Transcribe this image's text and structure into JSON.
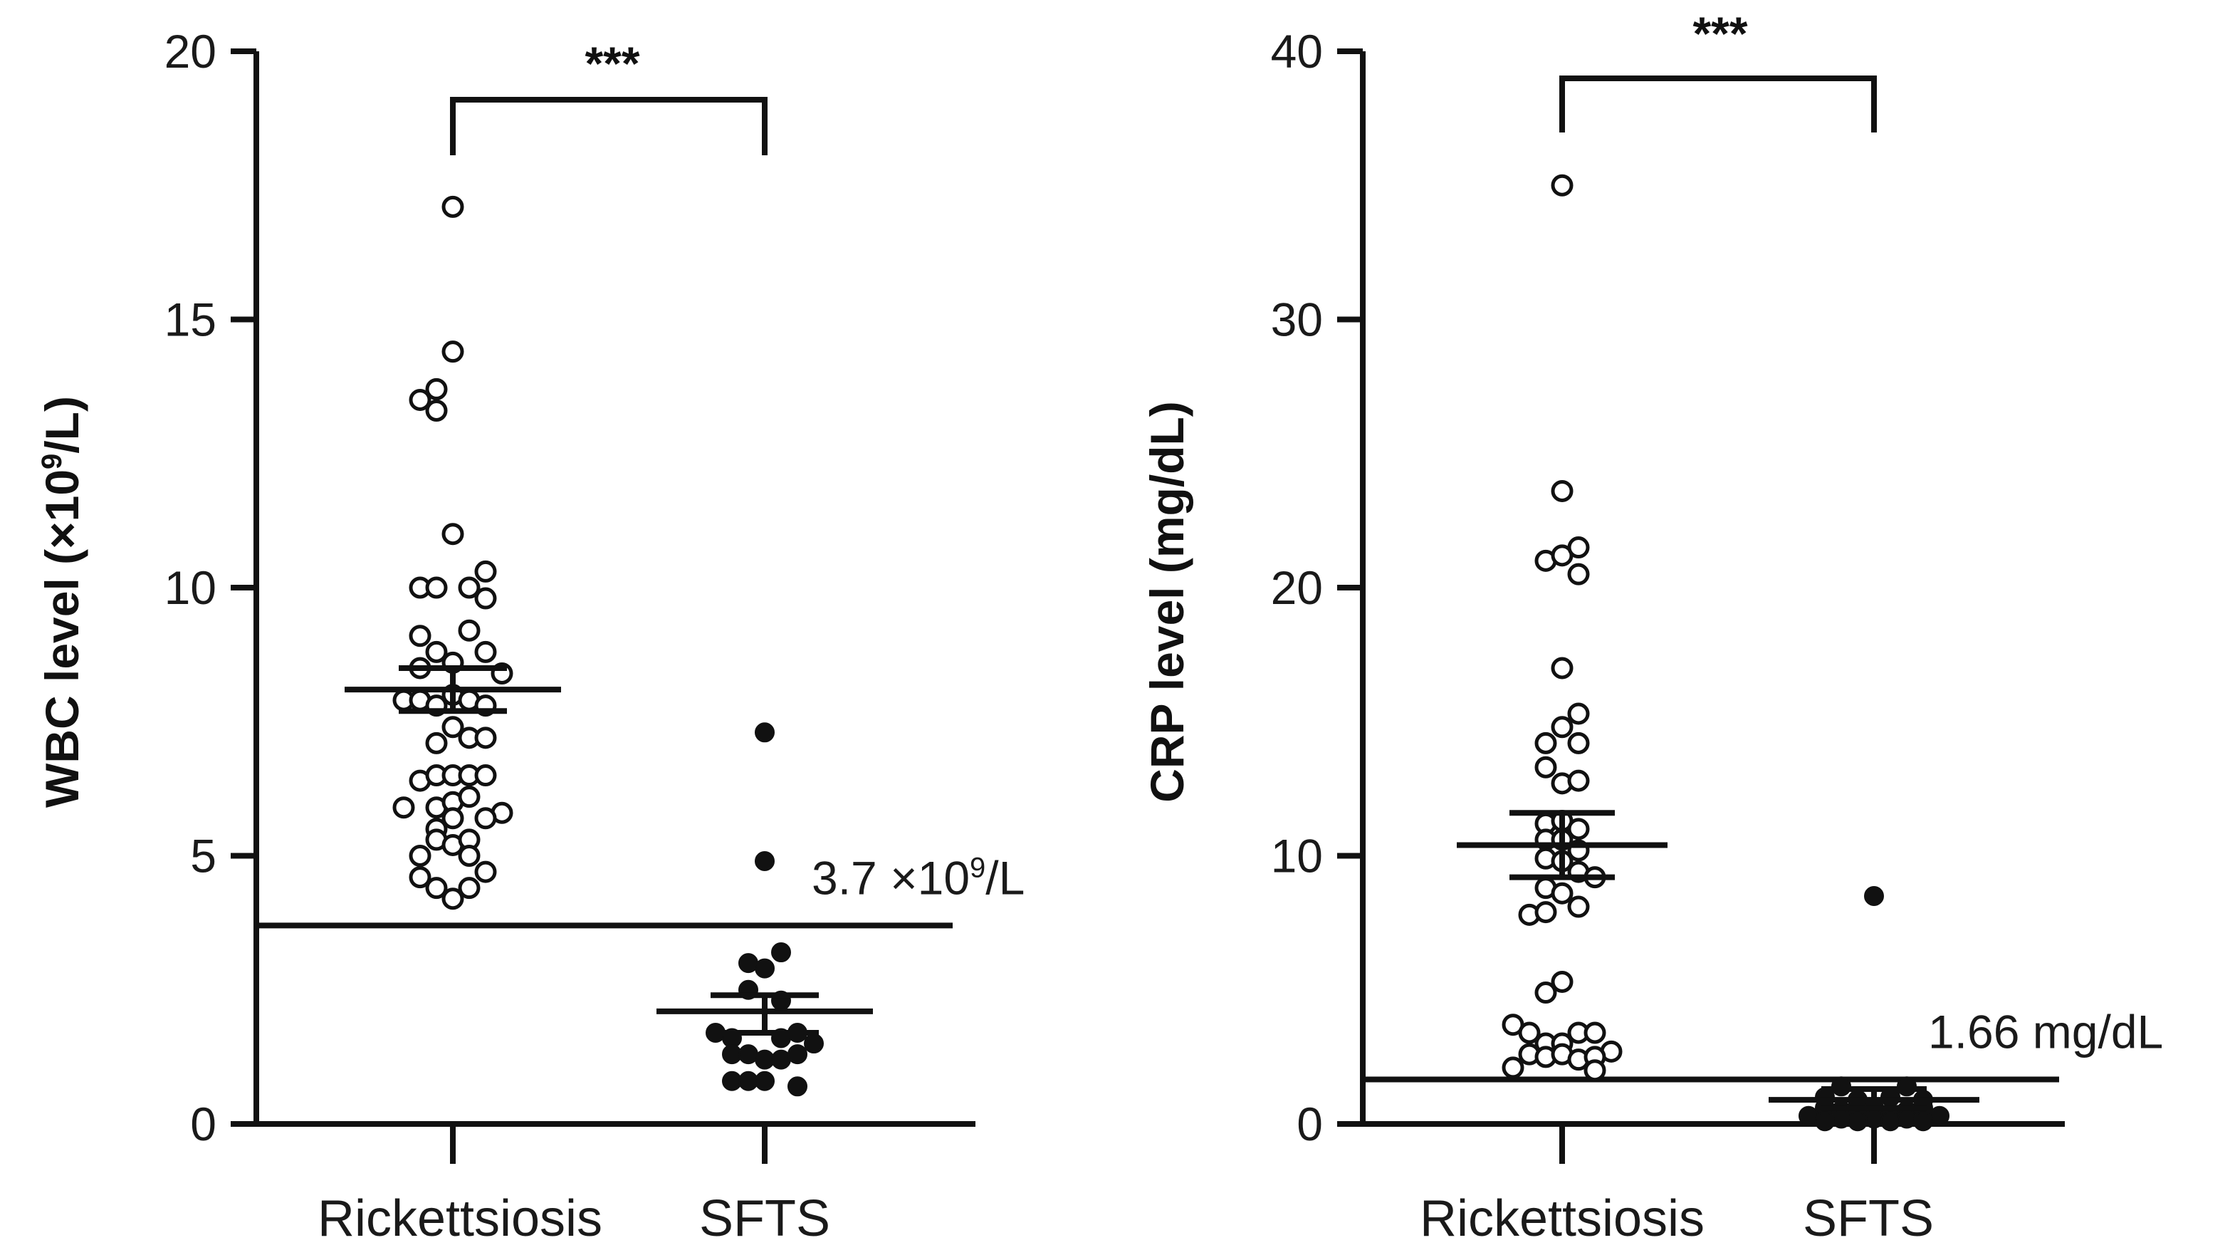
{
  "chart_data": [
    {
      "type": "scatter",
      "panel": "left",
      "ylabel_prefix": "WBC level (×10",
      "ylabel_sup": "9",
      "ylabel_suffix": "/L)",
      "ylim": [
        0,
        20
      ],
      "yticks": [
        "0",
        "5",
        "10",
        "15",
        "20"
      ],
      "categories": [
        "Rickettsiosis",
        "SFTS"
      ],
      "significance": "***",
      "reference_line": {
        "value": 3.7,
        "label_prefix": "3.7 ×10",
        "label_sup": "9",
        "label_suffix": "/L"
      },
      "series": [
        {
          "name": "Rickettsiosis",
          "marker": "open-circle",
          "mean": 8.1,
          "sem_low": 7.7,
          "sem_high": 8.5,
          "points": [
            {
              "o": 0,
              "v": 17.1
            },
            {
              "o": 0,
              "v": 14.4
            },
            {
              "o": -1,
              "v": 13.7
            },
            {
              "o": -2,
              "v": 13.5
            },
            {
              "o": -1,
              "v": 13.3
            },
            {
              "o": 0,
              "v": 11.0
            },
            {
              "o": -2,
              "v": 10.0
            },
            {
              "o": -1,
              "v": 10.0
            },
            {
              "o": 1,
              "v": 10.0
            },
            {
              "o": 2,
              "v": 10.3
            },
            {
              "o": 2,
              "v": 9.8
            },
            {
              "o": -2,
              "v": 9.1
            },
            {
              "o": 1,
              "v": 9.2
            },
            {
              "o": -1,
              "v": 8.8
            },
            {
              "o": 0,
              "v": 8.6
            },
            {
              "o": 2,
              "v": 8.8
            },
            {
              "o": -2,
              "v": 8.5
            },
            {
              "o": 3,
              "v": 8.4
            },
            {
              "o": -3,
              "v": 7.9
            },
            {
              "o": -2,
              "v": 7.9
            },
            {
              "o": -1,
              "v": 7.8
            },
            {
              "o": 0,
              "v": 8.0
            },
            {
              "o": 1,
              "v": 7.9
            },
            {
              "o": 2,
              "v": 7.8
            },
            {
              "o": -1,
              "v": 7.1
            },
            {
              "o": 0,
              "v": 7.4
            },
            {
              "o": 1,
              "v": 7.2
            },
            {
              "o": 2,
              "v": 7.2
            },
            {
              "o": -2,
              "v": 6.4
            },
            {
              "o": -1,
              "v": 6.5
            },
            {
              "o": 0,
              "v": 6.5
            },
            {
              "o": 1,
              "v": 6.5
            },
            {
              "o": 2,
              "v": 6.5
            },
            {
              "o": -1,
              "v": 5.9
            },
            {
              "o": 0,
              "v": 6.0
            },
            {
              "o": 1,
              "v": 6.1
            },
            {
              "o": -3,
              "v": 5.9
            },
            {
              "o": 3,
              "v": 5.8
            },
            {
              "o": -1,
              "v": 5.5
            },
            {
              "o": 0,
              "v": 5.7
            },
            {
              "o": 2,
              "v": 5.7
            },
            {
              "o": -1,
              "v": 5.3
            },
            {
              "o": 0,
              "v": 5.2
            },
            {
              "o": 1,
              "v": 5.3
            },
            {
              "o": -2,
              "v": 5.0
            },
            {
              "o": 1,
              "v": 5.0
            },
            {
              "o": -2,
              "v": 4.6
            },
            {
              "o": 2,
              "v": 4.7
            },
            {
              "o": -1,
              "v": 4.4
            },
            {
              "o": 1,
              "v": 4.4
            },
            {
              "o": 0,
              "v": 4.2
            }
          ]
        },
        {
          "name": "SFTS",
          "marker": "filled-circle",
          "mean": 2.1,
          "sem_low": 1.7,
          "sem_high": 2.4,
          "points": [
            {
              "o": 0,
              "v": 7.3
            },
            {
              "o": 0,
              "v": 4.9
            },
            {
              "o": 1,
              "v": 3.2
            },
            {
              "o": -1,
              "v": 3.0
            },
            {
              "o": 0,
              "v": 2.9
            },
            {
              "o": -1,
              "v": 2.5
            },
            {
              "o": 1,
              "v": 2.3
            },
            {
              "o": -3,
              "v": 1.7
            },
            {
              "o": -2,
              "v": 1.6
            },
            {
              "o": 1,
              "v": 1.6
            },
            {
              "o": 2,
              "v": 1.7
            },
            {
              "o": 3,
              "v": 1.5
            },
            {
              "o": -2,
              "v": 1.3
            },
            {
              "o": -1,
              "v": 1.3
            },
            {
              "o": 0,
              "v": 1.2
            },
            {
              "o": 1,
              "v": 1.2
            },
            {
              "o": 2,
              "v": 1.3
            },
            {
              "o": -2,
              "v": 0.8
            },
            {
              "o": -1,
              "v": 0.8
            },
            {
              "o": 0,
              "v": 0.8
            },
            {
              "o": 2,
              "v": 0.7
            }
          ]
        }
      ]
    },
    {
      "type": "scatter",
      "panel": "right",
      "ylabel": "CRP level (mg/dL)",
      "ylim": [
        0,
        40
      ],
      "yticks": [
        "0",
        "10",
        "20",
        "30",
        "40"
      ],
      "categories": [
        "Rickettsiosis",
        "SFTS"
      ],
      "significance": "***",
      "reference_line": {
        "value": 1.66,
        "label": "1.66 mg/dL"
      },
      "series": [
        {
          "name": "Rickettsiosis",
          "marker": "open-circle",
          "mean": 10.4,
          "sem_low": 9.2,
          "sem_high": 11.6,
          "points": [
            {
              "o": 0,
              "v": 35.0
            },
            {
              "o": 0,
              "v": 23.6
            },
            {
              "o": -1,
              "v": 21.0
            },
            {
              "o": 0,
              "v": 21.2
            },
            {
              "o": 1,
              "v": 21.5
            },
            {
              "o": 1,
              "v": 20.5
            },
            {
              "o": 0,
              "v": 17.0
            },
            {
              "o": 1,
              "v": 15.3
            },
            {
              "o": 0,
              "v": 14.8
            },
            {
              "o": -1,
              "v": 14.2
            },
            {
              "o": 1,
              "v": 14.2
            },
            {
              "o": -1,
              "v": 13.3
            },
            {
              "o": 0,
              "v": 12.7
            },
            {
              "o": 1,
              "v": 12.8
            },
            {
              "o": -1,
              "v": 11.2
            },
            {
              "o": 0,
              "v": 11.3
            },
            {
              "o": 1,
              "v": 11.0
            },
            {
              "o": -1,
              "v": 10.6
            },
            {
              "o": 0,
              "v": 10.6
            },
            {
              "o": 1,
              "v": 10.2
            },
            {
              "o": -1,
              "v": 9.9
            },
            {
              "o": 0,
              "v": 9.8
            },
            {
              "o": 1,
              "v": 9.4
            },
            {
              "o": 2,
              "v": 9.2
            },
            {
              "o": -1,
              "v": 8.8
            },
            {
              "o": 0,
              "v": 8.6
            },
            {
              "o": 1,
              "v": 8.1
            },
            {
              "o": -2,
              "v": 7.8
            },
            {
              "o": -1,
              "v": 7.9
            },
            {
              "o": 0,
              "v": 5.3
            },
            {
              "o": -1,
              "v": 4.9
            },
            {
              "o": -3,
              "v": 3.7
            },
            {
              "o": -2,
              "v": 3.4
            },
            {
              "o": 1,
              "v": 3.4
            },
            {
              "o": 2,
              "v": 3.4
            },
            {
              "o": -1,
              "v": 3.0
            },
            {
              "o": 0,
              "v": 3.0
            },
            {
              "o": 3,
              "v": 2.7
            },
            {
              "o": -2,
              "v": 2.6
            },
            {
              "o": -1,
              "v": 2.5
            },
            {
              "o": 0,
              "v": 2.6
            },
            {
              "o": 1,
              "v": 2.4
            },
            {
              "o": 2,
              "v": 2.5
            },
            {
              "o": -3,
              "v": 2.1
            },
            {
              "o": 2,
              "v": 2.0
            }
          ]
        },
        {
          "name": "SFTS",
          "marker": "filled-circle",
          "mean": 0.9,
          "sem_low": 0.6,
          "sem_high": 1.3,
          "points": [
            {
              "o": 0,
              "v": 8.5
            },
            {
              "o": -2,
              "v": 1.4
            },
            {
              "o": 2,
              "v": 1.4
            },
            {
              "o": -3,
              "v": 1.0
            },
            {
              "o": -1,
              "v": 0.9
            },
            {
              "o": 1,
              "v": 1.0
            },
            {
              "o": 3,
              "v": 0.9
            },
            {
              "o": -3,
              "v": 0.6
            },
            {
              "o": -2,
              "v": 0.5
            },
            {
              "o": 0,
              "v": 0.6
            },
            {
              "o": 2,
              "v": 0.5
            },
            {
              "o": 3,
              "v": 0.6
            },
            {
              "o": -4,
              "v": 0.3
            },
            {
              "o": -2,
              "v": 0.2
            },
            {
              "o": -1,
              "v": 0.3
            },
            {
              "o": 0,
              "v": 0.2
            },
            {
              "o": 1,
              "v": 0.3
            },
            {
              "o": 2,
              "v": 0.2
            },
            {
              "o": 4,
              "v": 0.3
            },
            {
              "o": -3,
              "v": 0.1
            },
            {
              "o": -1,
              "v": 0.1
            },
            {
              "o": 1,
              "v": 0.1
            },
            {
              "o": 3,
              "v": 0.1
            }
          ]
        }
      ]
    }
  ]
}
